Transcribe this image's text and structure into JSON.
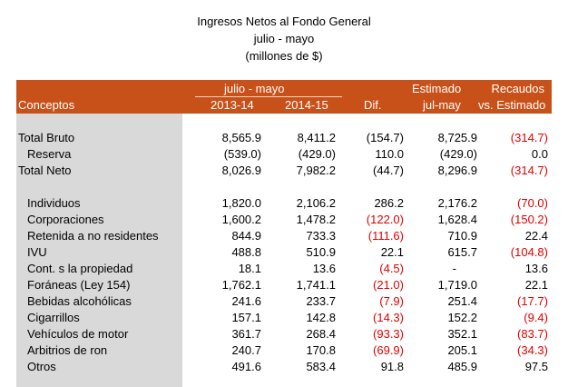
{
  "title": {
    "line1": "Ingresos Netos al Fondo General",
    "line2": "julio - mayo",
    "line3": "(millones de $)"
  },
  "header": {
    "concepts": "Conceptos",
    "period_group": "julio - mayo",
    "col_2013": "2013-14",
    "col_2014": "2014-15",
    "col_diff": "Dif.",
    "estimated_top": "Estimado",
    "estimated_bottom": "jul-may",
    "collections_top": "Recaudos",
    "collections_bottom": "vs. Estimado"
  },
  "colors": {
    "header_bg": "#c8511a",
    "left_column_bg": "#d9d9d9",
    "negative_text": "#e00000"
  },
  "rows": [
    {
      "label": "Total Bruto",
      "indent": false,
      "v2013": "8,565.9",
      "v2014": "8,411.2",
      "diff": "(154.7)",
      "diff_neg": false,
      "est": "8,725.9",
      "vs": "(314.7)",
      "vs_neg": true
    },
    {
      "label": "Reserva",
      "indent": true,
      "v2013": "(539.0)",
      "v2014": "(429.0)",
      "diff": "110.0",
      "diff_neg": false,
      "est": "(429.0)",
      "vs": "0.0",
      "vs_neg": false
    },
    {
      "label": "Total Neto",
      "indent": false,
      "v2013": "8,026.9",
      "v2014": "7,982.2",
      "diff": "(44.7)",
      "diff_neg": false,
      "est": "8,296.9",
      "vs": "(314.7)",
      "vs_neg": true
    },
    {
      "label": "Individuos",
      "indent": true,
      "v2013": "1,820.0",
      "v2014": "2,106.2",
      "diff": "286.2",
      "diff_neg": false,
      "est": "2,176.2",
      "vs": "(70.0)",
      "vs_neg": true
    },
    {
      "label": "Corporaciones",
      "indent": true,
      "v2013": "1,600.2",
      "v2014": "1,478.2",
      "diff": "(122.0)",
      "diff_neg": true,
      "est": "1,628.4",
      "vs": "(150.2)",
      "vs_neg": true
    },
    {
      "label": "Retenida a no residentes",
      "indent": true,
      "v2013": "844.9",
      "v2014": "733.3",
      "diff": "(111.6)",
      "diff_neg": true,
      "est": "710.9",
      "vs": "22.4",
      "vs_neg": false
    },
    {
      "label": "IVU",
      "indent": true,
      "v2013": "488.8",
      "v2014": "510.9",
      "diff": "22.1",
      "diff_neg": false,
      "est": "615.7",
      "vs": "(104.8)",
      "vs_neg": true
    },
    {
      "label": "Cont. s la propiedad",
      "indent": true,
      "v2013": "18.1",
      "v2014": "13.6",
      "diff": "(4.5)",
      "diff_neg": true,
      "est": "-",
      "vs": "13.6",
      "vs_neg": false
    },
    {
      "label": "Foráneas (Ley 154)",
      "indent": true,
      "v2013": "1,762.1",
      "v2014": "1,741.1",
      "diff": "(21.0)",
      "diff_neg": true,
      "est": "1,719.0",
      "vs": "22.1",
      "vs_neg": false
    },
    {
      "label": "Bebidas alcohólicas",
      "indent": true,
      "v2013": "241.6",
      "v2014": "233.7",
      "diff": "(7.9)",
      "diff_neg": true,
      "est": "251.4",
      "vs": "(17.7)",
      "vs_neg": true
    },
    {
      "label": "Cigarrillos",
      "indent": true,
      "v2013": "157.1",
      "v2014": "142.8",
      "diff": "(14.3)",
      "diff_neg": true,
      "est": "152.2",
      "vs": "(9.4)",
      "vs_neg": true
    },
    {
      "label": "Vehículos de motor",
      "indent": true,
      "v2013": "361.7",
      "v2014": "268.4",
      "diff": "(93.3)",
      "diff_neg": true,
      "est": "352.1",
      "vs": "(83.7)",
      "vs_neg": true
    },
    {
      "label": "Arbitrios de ron",
      "indent": true,
      "v2013": "240.7",
      "v2014": "170.8",
      "diff": "(69.9)",
      "diff_neg": true,
      "est": "205.1",
      "vs": "(34.3)",
      "vs_neg": true
    },
    {
      "label": "Otros",
      "indent": true,
      "v2013": "491.6",
      "v2014": "583.4",
      "diff": "91.8",
      "diff_neg": false,
      "est": "485.9",
      "vs": "97.5",
      "vs_neg": false
    }
  ]
}
